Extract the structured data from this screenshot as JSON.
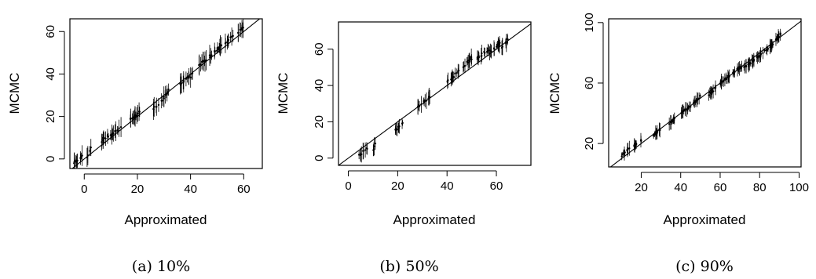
{
  "chart_data": [
    {
      "type": "scatter",
      "caption": "(a) 10%",
      "xlabel": "Approximated",
      "ylabel": "MCMC",
      "xlim": [
        -5.4,
        67
      ],
      "ylim": [
        -4.5,
        66
      ],
      "xticks": [
        0,
        20,
        40,
        60
      ],
      "yticks": [
        0,
        20,
        40,
        60
      ],
      "grid": false,
      "reference_line": "y = x",
      "clusters": [
        {
          "x": [
            -4,
            0
          ],
          "y": [
            -2,
            2
          ]
        },
        {
          "x": [
            1,
            3
          ],
          "y": [
            1,
            6
          ]
        },
        {
          "x": [
            6,
            10
          ],
          "y": [
            8,
            12
          ]
        },
        {
          "x": [
            10,
            14
          ],
          "y": [
            11,
            15
          ]
        },
        {
          "x": [
            17,
            22
          ],
          "y": [
            18,
            23
          ]
        },
        {
          "x": [
            26,
            28
          ],
          "y": [
            24,
            26
          ]
        },
        {
          "x": [
            29,
            32
          ],
          "y": [
            27,
            33
          ]
        },
        {
          "x": [
            36,
            41
          ],
          "y": [
            35,
            40
          ]
        },
        {
          "x": [
            43,
            46
          ],
          "y": [
            44,
            47
          ]
        },
        {
          "x": [
            47,
            52
          ],
          "y": [
            48,
            54
          ]
        },
        {
          "x": [
            53,
            56
          ],
          "y": [
            54,
            58
          ]
        },
        {
          "x": [
            57,
            60
          ],
          "y": [
            58,
            62
          ]
        }
      ]
    },
    {
      "type": "scatter",
      "caption": "(b) 50%",
      "xlabel": "Approximated",
      "ylabel": "MCMC",
      "xlim": [
        -4,
        74
      ],
      "ylim": [
        -4,
        75
      ],
      "xticks": [
        0,
        20,
        40,
        60
      ],
      "yticks": [
        0,
        20,
        40,
        60
      ],
      "grid": false,
      "reference_line": "y = x",
      "clusters": [
        {
          "x": [
            4,
            8
          ],
          "y": [
            1,
            6
          ]
        },
        {
          "x": [
            10,
            11
          ],
          "y": [
            4,
            9
          ]
        },
        {
          "x": [
            19,
            22
          ],
          "y": [
            15,
            20
          ]
        },
        {
          "x": [
            28,
            33
          ],
          "y": [
            28,
            34
          ]
        },
        {
          "x": [
            40,
            45
          ],
          "y": [
            42,
            48
          ]
        },
        {
          "x": [
            46,
            50
          ],
          "y": [
            50,
            55
          ]
        },
        {
          "x": [
            52,
            57
          ],
          "y": [
            55,
            60
          ]
        },
        {
          "x": [
            57,
            62
          ],
          "y": [
            58,
            64
          ]
        },
        {
          "x": [
            62,
            65
          ],
          "y": [
            60,
            66
          ]
        }
      ]
    },
    {
      "type": "scatter",
      "caption": "(c) 90%",
      "xlabel": "Approximated",
      "ylabel": "MCMC",
      "xlim": [
        3.5,
        101
      ],
      "ylim": [
        4.5,
        102.5
      ],
      "xticks": [
        20,
        40,
        60,
        80,
        100
      ],
      "yticks": [
        20,
        60,
        100
      ],
      "grid": false,
      "reference_line": "y = x",
      "clusters": [
        {
          "x": [
            10,
            14
          ],
          "y": [
            12,
            17
          ]
        },
        {
          "x": [
            16,
            20
          ],
          "y": [
            18,
            22
          ]
        },
        {
          "x": [
            26,
            30
          ],
          "y": [
            25,
            30
          ]
        },
        {
          "x": [
            34,
            37
          ],
          "y": [
            33,
            36
          ]
        },
        {
          "x": [
            40,
            45
          ],
          "y": [
            40,
            45
          ]
        },
        {
          "x": [
            46,
            50
          ],
          "y": [
            46,
            51
          ]
        },
        {
          "x": [
            54,
            58
          ],
          "y": [
            52,
            57
          ]
        },
        {
          "x": [
            60,
            65
          ],
          "y": [
            60,
            65
          ]
        },
        {
          "x": [
            66,
            71
          ],
          "y": [
            66,
            71
          ]
        },
        {
          "x": [
            72,
            78
          ],
          "y": [
            70,
            76
          ]
        },
        {
          "x": [
            78,
            82
          ],
          "y": [
            76,
            80
          ]
        },
        {
          "x": [
            82,
            87
          ],
          "y": [
            81,
            86
          ]
        },
        {
          "x": [
            88,
            91
          ],
          "y": [
            88,
            93
          ]
        }
      ]
    }
  ]
}
